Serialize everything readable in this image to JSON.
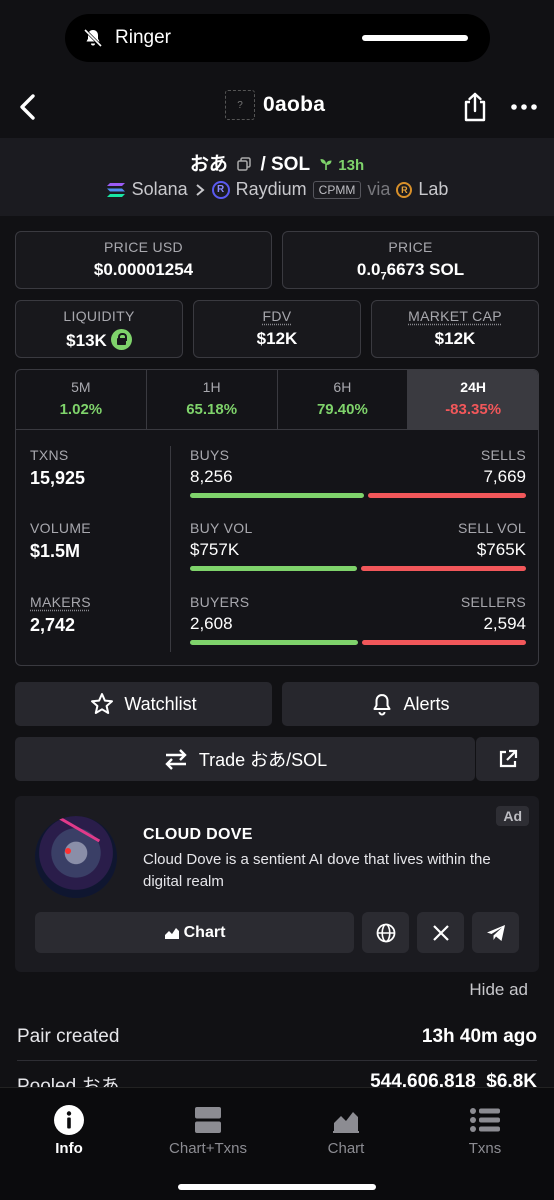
{
  "status": {
    "ringer_label": "Ringer"
  },
  "header": {
    "token_placeholder": "?",
    "title": "0aoba"
  },
  "pair": {
    "base": "おあ",
    "separator": "/",
    "quote": "SOL",
    "age": "13h",
    "chain": "Solana",
    "dex": "Raydium",
    "dex_logo_letter": "R",
    "pool_type": "CPMM",
    "via_label": "via",
    "launchpad": "Lab",
    "launchpad_logo_letter": "R"
  },
  "prices": {
    "price_usd_label": "PRICE USD",
    "price_usd": "$0.00001254",
    "price_label": "PRICE",
    "price_prefix": "0.0",
    "price_subscript": "7",
    "price_suffix": "6673 SOL"
  },
  "metrics": {
    "liquidity_label": "LIQUIDITY",
    "liquidity": "$13K",
    "fdv_label": "FDV",
    "fdv": "$12K",
    "mcap_label": "MARKET CAP",
    "mcap": "$12K"
  },
  "timeframes": [
    {
      "label": "5M",
      "change": "1.02%",
      "direction": "up"
    },
    {
      "label": "1H",
      "change": "65.18%",
      "direction": "up"
    },
    {
      "label": "6H",
      "change": "79.40%",
      "direction": "up"
    },
    {
      "label": "24H",
      "change": "-83.35%",
      "direction": "down",
      "active": true
    }
  ],
  "stats": {
    "txns_label": "TXNS",
    "txns": "15,925",
    "volume_label": "VOLUME",
    "volume": "$1.5M",
    "makers_label": "MAKERS",
    "makers": "2,742",
    "buys_label": "BUYS",
    "buys": "8,256",
    "sells_label": "SELLS",
    "sells": "7,669",
    "buys_fraction": 0.518,
    "buyvol_label": "BUY VOL",
    "buyvol": "$757K",
    "sellvol_label": "SELL VOL",
    "sellvol": "$765K",
    "buyvol_fraction": 0.497,
    "buyers_label": "BUYERS",
    "buyers": "2,608",
    "sellers_label": "SELLERS",
    "sellers": "2,594",
    "buyers_fraction": 0.501
  },
  "actions": {
    "watchlist": "Watchlist",
    "alerts": "Alerts",
    "trade": "Trade おあ/SOL"
  },
  "ad": {
    "tag": "Ad",
    "name": "CLOUD DOVE",
    "description": "Cloud Dove is a sentient AI dove that lives within the digital realm",
    "chart_button": "Chart",
    "hide": "Hide ad"
  },
  "info": {
    "pair_created_label": "Pair created",
    "pair_created": "13h 40m ago",
    "pooled_label": "Pooled おあ",
    "pooled_amount": "544,606,818",
    "pooled_value": "$6.8K"
  },
  "nav": [
    {
      "label": "Info",
      "icon": "info-icon",
      "active": true
    },
    {
      "label": "Chart+Txns",
      "icon": "split-view-icon"
    },
    {
      "label": "Chart",
      "icon": "area-chart-icon"
    },
    {
      "label": "Txns",
      "icon": "list-icon"
    }
  ],
  "colors": {
    "green": "#7fd36b",
    "red": "#f2575a",
    "background": "#111114",
    "card": "#18181c"
  }
}
